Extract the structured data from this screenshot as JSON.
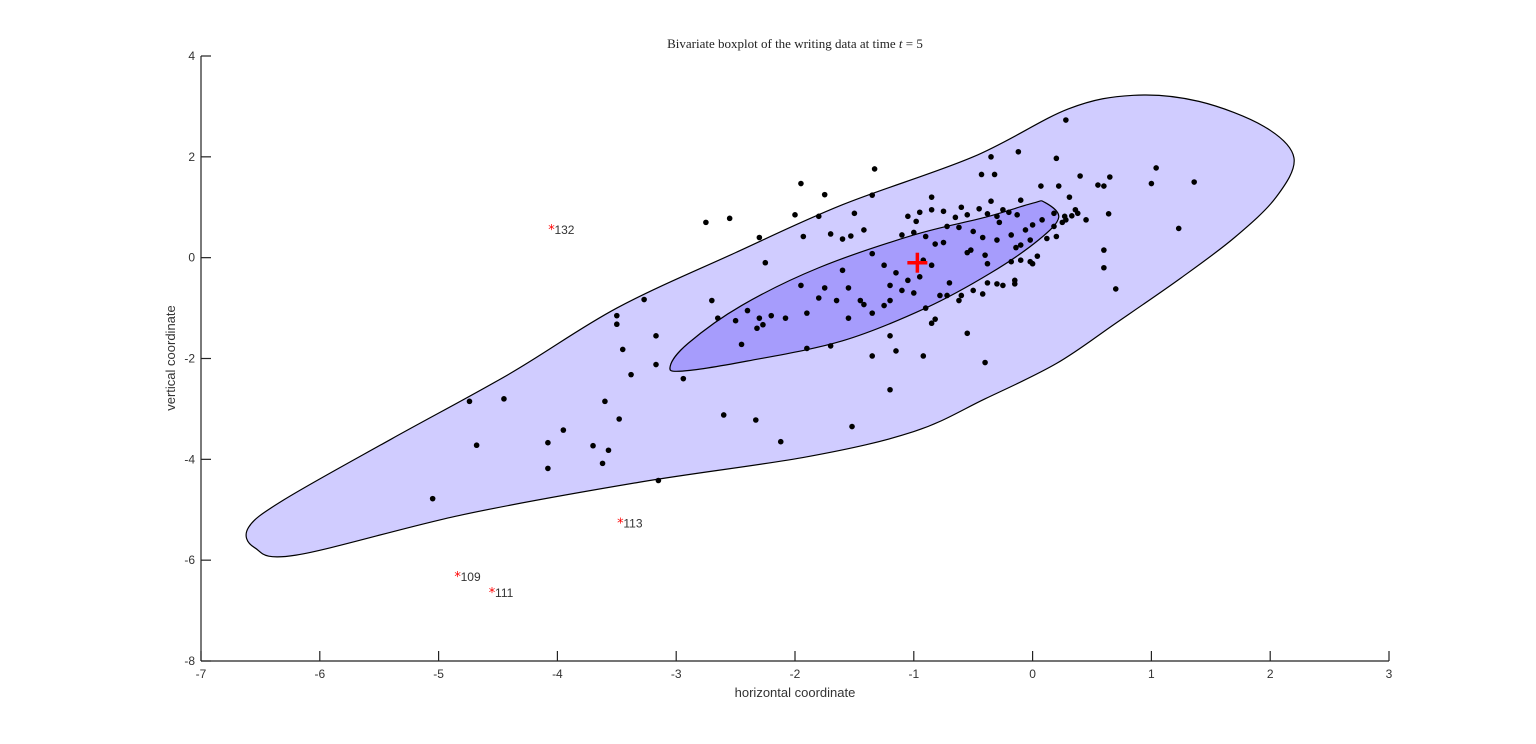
{
  "chart_data": {
    "type": "scatter",
    "title": "Bivariate boxplot of the writing data at time t = 5",
    "title_parts": {
      "prefix": "Bivariate boxplot of the writing data at time ",
      "var": "t",
      "suffix": " = 5"
    },
    "xlabel": "horizontal coordinate",
    "ylabel": "vertical coordinate",
    "xlim": [
      -7,
      3
    ],
    "ylim": [
      -8,
      4
    ],
    "xticks": [
      -7,
      -6,
      -5,
      -4,
      -3,
      -2,
      -1,
      0,
      1,
      2,
      3
    ],
    "yticks": [
      -8,
      -6,
      -4,
      -2,
      0,
      2,
      4
    ],
    "grid": false,
    "legend": null,
    "colors": {
      "outer_fence": "#d0ccff",
      "inner_hinge": "#a69cfc",
      "points": "#000000",
      "outliers": "#ff0000",
      "center": "#ff0000"
    },
    "center": {
      "x": -0.97,
      "y": -0.1,
      "marker": "+"
    },
    "outer_contour": [
      [
        0.85,
        3.22
      ],
      [
        1.4,
        3.1
      ],
      [
        1.95,
        2.6
      ],
      [
        2.2,
        1.98
      ],
      [
        2.05,
        1.2
      ],
      [
        1.7,
        0.4
      ],
      [
        1.25,
        -0.4
      ],
      [
        0.7,
        -1.3
      ],
      [
        0.2,
        -2.1
      ],
      [
        -0.4,
        -2.8
      ],
      [
        -1.0,
        -3.45
      ],
      [
        -1.9,
        -3.95
      ],
      [
        -3.3,
        -4.45
      ],
      [
        -4.8,
        -5.1
      ],
      [
        -6.2,
        -5.9
      ],
      [
        -6.55,
        -5.75
      ],
      [
        -6.6,
        -5.35
      ],
      [
        -6.3,
        -4.8
      ],
      [
        -5.4,
        -3.6
      ],
      [
        -4.4,
        -2.3
      ],
      [
        -3.5,
        -1.0
      ],
      [
        -2.5,
        0.1
      ],
      [
        -1.6,
        1.05
      ],
      [
        -0.5,
        2.0
      ],
      [
        0.3,
        2.95
      ],
      [
        0.85,
        3.22
      ]
    ],
    "inner_contour": [
      [
        0.1,
        1.1
      ],
      [
        0.22,
        0.8
      ],
      [
        0.05,
        0.35
      ],
      [
        -0.35,
        -0.3
      ],
      [
        -0.9,
        -1.0
      ],
      [
        -1.6,
        -1.65
      ],
      [
        -2.4,
        -2.05
      ],
      [
        -2.95,
        -2.25
      ],
      [
        -3.05,
        -2.15
      ],
      [
        -2.9,
        -1.7
      ],
      [
        -2.45,
        -0.95
      ],
      [
        -1.8,
        -0.2
      ],
      [
        -1.0,
        0.45
      ],
      [
        -0.4,
        0.8
      ],
      [
        0.0,
        1.08
      ],
      [
        0.1,
        1.1
      ]
    ],
    "outliers": [
      {
        "id": "132",
        "x": -4.05,
        "y": 0.55
      },
      {
        "id": "113",
        "x": -3.47,
        "y": -5.27
      },
      {
        "id": "109",
        "x": -4.84,
        "y": -6.33
      },
      {
        "id": "111",
        "x": -4.55,
        "y": -6.65
      }
    ],
    "points": [
      [
        0.28,
        2.73
      ],
      [
        -0.35,
        2.0
      ],
      [
        -0.12,
        2.1
      ],
      [
        0.2,
        1.97
      ],
      [
        -1.33,
        1.76
      ],
      [
        -0.32,
        1.65
      ],
      [
        -0.43,
        1.65
      ],
      [
        0.4,
        1.62
      ],
      [
        0.65,
        1.6
      ],
      [
        0.55,
        1.44
      ],
      [
        0.07,
        1.42
      ],
      [
        0.22,
        1.42
      ],
      [
        1.0,
        1.47
      ],
      [
        1.36,
        1.5
      ],
      [
        1.04,
        1.78
      ],
      [
        0.6,
        1.42
      ],
      [
        -1.95,
        1.47
      ],
      [
        -1.75,
        1.25
      ],
      [
        -1.35,
        1.24
      ],
      [
        -0.85,
        1.2
      ],
      [
        -0.35,
        1.12
      ],
      [
        -0.1,
        1.14
      ],
      [
        0.36,
        0.95
      ],
      [
        0.31,
        1.2
      ],
      [
        -0.6,
        1.0
      ],
      [
        -0.2,
        0.9
      ],
      [
        0.18,
        0.88
      ],
      [
        0.27,
        0.82
      ],
      [
        0.33,
        0.83
      ],
      [
        0.64,
        0.87
      ],
      [
        0.45,
        0.75
      ],
      [
        -1.8,
        0.82
      ],
      [
        -1.5,
        0.88
      ],
      [
        -2.0,
        0.85
      ],
      [
        -2.55,
        0.78
      ],
      [
        -2.75,
        0.7
      ],
      [
        -2.3,
        0.4
      ],
      [
        -1.93,
        0.42
      ],
      [
        -1.7,
        0.47
      ],
      [
        -1.42,
        0.55
      ],
      [
        -1.53,
        0.43
      ],
      [
        -1.6,
        0.37
      ],
      [
        -1.05,
        0.82
      ],
      [
        -0.95,
        0.9
      ],
      [
        -0.85,
        0.95
      ],
      [
        -0.75,
        0.92
      ],
      [
        -0.65,
        0.8
      ],
      [
        -0.55,
        0.85
      ],
      [
        -0.45,
        0.97
      ],
      [
        -0.38,
        0.87
      ],
      [
        -0.3,
        0.82
      ],
      [
        -0.28,
        0.7
      ],
      [
        -0.13,
        0.85
      ],
      [
        0.0,
        0.65
      ],
      [
        0.08,
        0.75
      ],
      [
        0.25,
        0.7
      ],
      [
        0.12,
        0.38
      ],
      [
        0.2,
        0.42
      ],
      [
        -0.98,
        0.72
      ],
      [
        -1.0,
        0.5
      ],
      [
        -0.9,
        0.42
      ],
      [
        -1.1,
        0.45
      ],
      [
        -0.72,
        0.62
      ],
      [
        -0.62,
        0.6
      ],
      [
        -0.5,
        0.52
      ],
      [
        -0.42,
        0.4
      ],
      [
        -0.3,
        0.35
      ],
      [
        -0.18,
        0.45
      ],
      [
        -0.06,
        0.55
      ],
      [
        -0.02,
        0.35
      ],
      [
        -0.75,
        0.3
      ],
      [
        -0.82,
        0.27
      ],
      [
        -0.52,
        0.15
      ],
      [
        -0.4,
        0.05
      ],
      [
        -0.55,
        0.1
      ],
      [
        -0.14,
        0.2
      ],
      [
        -0.1,
        -0.05
      ],
      [
        0.04,
        0.03
      ],
      [
        -0.02,
        -0.08
      ],
      [
        0.0,
        -0.12
      ],
      [
        -0.18,
        -0.08
      ],
      [
        -0.38,
        -0.12
      ],
      [
        -1.35,
        0.08
      ],
      [
        -1.25,
        -0.15
      ],
      [
        -1.15,
        -0.3
      ],
      [
        -1.05,
        -0.45
      ],
      [
        -0.95,
        -0.38
      ],
      [
        -1.2,
        -0.55
      ],
      [
        -1.1,
        -0.65
      ],
      [
        -0.85,
        -0.15
      ],
      [
        -0.92,
        -0.05
      ],
      [
        -1.0,
        -0.7
      ],
      [
        -0.7,
        -0.5
      ],
      [
        -0.6,
        -0.75
      ],
      [
        -0.5,
        -0.65
      ],
      [
        -0.38,
        -0.5
      ],
      [
        -0.25,
        -0.55
      ],
      [
        -0.3,
        -0.52
      ],
      [
        -0.15,
        -0.52
      ],
      [
        -0.78,
        -0.75
      ],
      [
        -0.72,
        -0.75
      ],
      [
        -0.9,
        -1.0
      ],
      [
        -1.2,
        -0.85
      ],
      [
        -1.25,
        -0.95
      ],
      [
        -1.45,
        -0.85
      ],
      [
        -1.35,
        -1.1
      ],
      [
        -0.62,
        -0.85
      ],
      [
        -0.42,
        -0.72
      ],
      [
        -1.55,
        -0.6
      ],
      [
        -1.75,
        -0.6
      ],
      [
        -1.65,
        -0.85
      ],
      [
        -1.42,
        -0.93
      ],
      [
        -1.55,
        -1.2
      ],
      [
        -1.9,
        -1.1
      ],
      [
        -2.08,
        -1.2
      ],
      [
        -1.8,
        -0.8
      ],
      [
        -1.95,
        -0.55
      ],
      [
        -1.6,
        -0.25
      ],
      [
        -2.25,
        -0.1
      ],
      [
        -2.3,
        -1.2
      ],
      [
        -2.27,
        -1.33
      ],
      [
        -2.4,
        -1.05
      ],
      [
        -2.5,
        -1.25
      ],
      [
        -2.32,
        -1.4
      ],
      [
        -2.65,
        -1.2
      ],
      [
        -2.7,
        -0.85
      ],
      [
        -2.2,
        -1.15
      ],
      [
        -2.45,
        -1.72
      ],
      [
        -1.2,
        -1.55
      ],
      [
        -1.15,
        -1.85
      ],
      [
        -1.35,
        -1.95
      ],
      [
        -0.92,
        -1.95
      ],
      [
        -0.82,
        -1.22
      ],
      [
        -0.85,
        -1.3
      ],
      [
        -0.55,
        -1.5
      ],
      [
        -0.4,
        -2.08
      ],
      [
        -1.9,
        -1.8
      ],
      [
        -1.7,
        -1.75
      ],
      [
        -1.2,
        -2.62
      ],
      [
        -2.94,
        -2.4
      ],
      [
        -3.17,
        -2.12
      ],
      [
        -3.45,
        -1.82
      ],
      [
        -3.5,
        -1.15
      ],
      [
        -3.5,
        -1.32
      ],
      [
        -3.27,
        -0.83
      ],
      [
        -3.17,
        -1.55
      ],
      [
        -3.38,
        -2.32
      ],
      [
        -3.6,
        -2.85
      ],
      [
        -3.48,
        -3.2
      ],
      [
        -2.6,
        -3.12
      ],
      [
        -2.33,
        -3.22
      ],
      [
        -2.12,
        -3.65
      ],
      [
        -1.52,
        -3.35
      ],
      [
        -3.15,
        -4.42
      ],
      [
        -3.57,
        -3.82
      ],
      [
        -3.62,
        -4.08
      ],
      [
        -3.7,
        -3.73
      ],
      [
        -3.95,
        -3.42
      ],
      [
        -4.08,
        -3.67
      ],
      [
        -4.08,
        -4.18
      ],
      [
        -4.45,
        -2.8
      ],
      [
        -4.74,
        -2.85
      ],
      [
        -4.68,
        -3.72
      ],
      [
        -5.05,
        -4.78
      ],
      [
        -0.15,
        -0.45
      ],
      [
        0.18,
        0.62
      ],
      [
        0.38,
        0.88
      ],
      [
        0.6,
        -0.2
      ],
      [
        0.6,
        0.15
      ],
      [
        0.7,
        -0.62
      ],
      [
        1.23,
        0.58
      ],
      [
        0.28,
        0.75
      ],
      [
        -0.25,
        0.95
      ],
      [
        -0.1,
        0.25
      ]
    ]
  }
}
